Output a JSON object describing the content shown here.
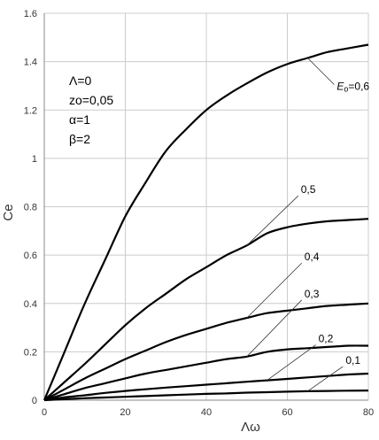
{
  "chart_data": {
    "type": "line",
    "title": "",
    "xlabel": "Λω",
    "ylabel": "Ce",
    "xlim": [
      0,
      80
    ],
    "ylim": [
      0,
      1.6
    ],
    "x_ticks": [
      "0",
      "20",
      "40",
      "60",
      "80"
    ],
    "y_ticks": [
      "0",
      "0.2",
      "0.4",
      "0.6",
      "0.8",
      "1",
      "1.2",
      "1.4",
      "1.6"
    ],
    "grid": true,
    "parameters": [
      "Λ=0",
      "zo=0,05",
      "α=1",
      "β=2"
    ],
    "x": [
      0,
      5,
      10,
      15,
      20,
      25,
      30,
      35,
      40,
      45,
      50,
      55,
      60,
      65,
      70,
      75,
      80
    ],
    "series": [
      {
        "name": "Eo=0,6",
        "label_main": "E",
        "label_sub": "o",
        "label_tail": "=0,6",
        "values": [
          0.0,
          0.2,
          0.4,
          0.58,
          0.76,
          0.9,
          1.03,
          1.12,
          1.2,
          1.26,
          1.31,
          1.355,
          1.39,
          1.415,
          1.44,
          1.455,
          1.47
        ]
      },
      {
        "name": "0,5",
        "label": "0,5",
        "values": [
          0.0,
          0.075,
          0.15,
          0.23,
          0.31,
          0.38,
          0.44,
          0.5,
          0.55,
          0.6,
          0.64,
          0.69,
          0.715,
          0.73,
          0.74,
          0.745,
          0.75
        ]
      },
      {
        "name": "0,4",
        "label": "0,4",
        "values": [
          0.0,
          0.045,
          0.09,
          0.13,
          0.17,
          0.205,
          0.24,
          0.27,
          0.295,
          0.32,
          0.34,
          0.36,
          0.37,
          0.38,
          0.39,
          0.395,
          0.4
        ]
      },
      {
        "name": "0,3",
        "label": "0,3",
        "values": [
          0.0,
          0.025,
          0.05,
          0.07,
          0.09,
          0.11,
          0.125,
          0.14,
          0.155,
          0.17,
          0.18,
          0.2,
          0.21,
          0.215,
          0.22,
          0.225,
          0.225
        ]
      },
      {
        "name": "0,2",
        "label": "0,2",
        "values": [
          0.0,
          0.012,
          0.02,
          0.03,
          0.038,
          0.045,
          0.052,
          0.058,
          0.064,
          0.07,
          0.076,
          0.082,
          0.088,
          0.094,
          0.1,
          0.106,
          0.11
        ]
      },
      {
        "name": "0,1",
        "label": "0,1",
        "values": [
          0.0,
          0.004,
          0.008,
          0.011,
          0.014,
          0.017,
          0.02,
          0.023,
          0.026,
          0.028,
          0.031,
          0.033,
          0.035,
          0.037,
          0.038,
          0.039,
          0.04
        ]
      }
    ],
    "colors": {
      "line": "#000000",
      "grid": "#cccccc",
      "leader": "#333333"
    }
  }
}
